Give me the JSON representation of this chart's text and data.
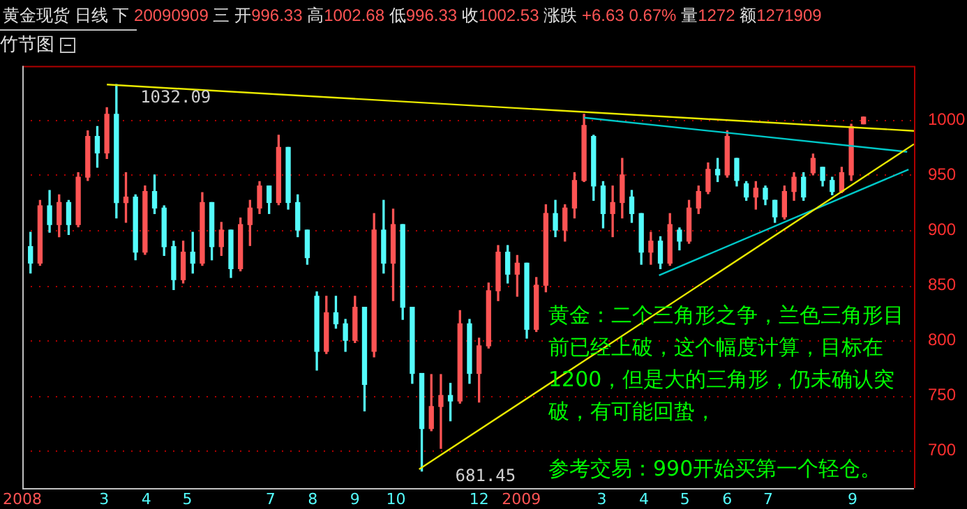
{
  "chart_data": {
    "type": "candlestick",
    "title": "黄金现货 日线 下 20090909 三 开996.33 高1002.68 低996.33 收1002.53 涨跌 +6.63 0.67% 量1272 额1271909",
    "subtitle": "竹节图",
    "x": [
      "2008-01-07",
      "2008-01-14",
      "2008-01-21",
      "2008-01-28",
      "2008-02-04",
      "2008-02-11",
      "2008-02-18",
      "2008-02-25",
      "2008-03-03",
      "2008-03-10",
      "2008-03-17",
      "2008-03-24",
      "2008-03-31",
      "2008-04-07",
      "2008-04-14",
      "2008-04-21",
      "2008-04-28",
      "2008-05-05",
      "2008-05-12",
      "2008-05-19",
      "2008-05-26",
      "2008-06-02",
      "2008-06-09",
      "2008-06-16",
      "2008-06-23",
      "2008-06-30",
      "2008-07-07",
      "2008-07-14",
      "2008-07-21",
      "2008-07-28",
      "2008-08-04",
      "2008-08-11",
      "2008-08-18",
      "2008-08-25",
      "2008-09-01",
      "2008-09-08",
      "2008-09-15",
      "2008-09-22",
      "2008-09-29",
      "2008-10-06",
      "2008-10-13",
      "2008-10-20",
      "2008-10-27",
      "2008-11-03",
      "2008-11-10",
      "2008-11-17",
      "2008-11-24",
      "2008-12-01",
      "2008-12-08",
      "2008-12-15",
      "2008-12-22",
      "2008-12-29",
      "2009-01-05",
      "2009-01-12",
      "2009-01-19",
      "2009-01-26",
      "2009-02-02",
      "2009-02-09",
      "2009-02-16",
      "2009-02-23",
      "2009-03-02",
      "2009-03-09",
      "2009-03-16",
      "2009-03-23",
      "2009-03-30",
      "2009-04-06",
      "2009-04-13",
      "2009-04-20",
      "2009-04-27",
      "2009-05-04",
      "2009-05-11",
      "2009-05-18",
      "2009-05-25",
      "2009-06-01",
      "2009-06-08",
      "2009-06-15",
      "2009-06-22",
      "2009-06-29",
      "2009-07-06",
      "2009-07-13",
      "2009-07-20",
      "2009-07-27",
      "2009-08-03",
      "2009-08-10",
      "2009-08-17",
      "2009-08-24",
      "2009-08-31",
      "2009-09-09"
    ],
    "ohlc": [
      [
        885,
        898,
        861,
        870
      ],
      [
        870,
        927,
        868,
        922
      ],
      [
        922,
        936,
        898,
        905
      ],
      [
        905,
        932,
        894,
        925
      ],
      [
        925,
        927,
        896,
        905
      ],
      [
        905,
        952,
        903,
        948
      ],
      [
        948,
        990,
        945,
        985
      ],
      [
        985,
        994,
        957,
        970
      ],
      [
        970,
        1011,
        965,
        1005
      ],
      [
        1005,
        1032.09,
        911,
        925
      ],
      [
        925,
        952,
        907,
        930
      ],
      [
        930,
        932,
        873,
        880
      ],
      [
        880,
        940,
        878,
        935
      ],
      [
        935,
        950,
        915,
        920
      ],
      [
        920,
        922,
        877,
        885
      ],
      [
        885,
        890,
        846,
        855
      ],
      [
        855,
        890,
        852,
        880
      ],
      [
        880,
        898,
        861,
        870
      ],
      [
        870,
        934,
        868,
        925
      ],
      [
        925,
        925,
        873,
        885
      ],
      [
        885,
        907,
        877,
        900
      ],
      [
        900,
        900,
        857,
        865
      ],
      [
        865,
        911,
        863,
        905
      ],
      [
        905,
        927,
        886,
        920
      ],
      [
        920,
        944,
        915,
        940
      ],
      [
        940,
        940,
        915,
        925
      ],
      [
        925,
        986,
        923,
        975
      ],
      [
        975,
        975,
        919,
        925
      ],
      [
        925,
        932,
        894,
        900
      ],
      [
        900,
        900,
        869,
        875
      ],
      [
        840,
        844,
        773,
        790
      ],
      [
        790,
        840,
        788,
        825
      ],
      [
        825,
        840,
        811,
        815
      ],
      [
        815,
        819,
        790,
        800
      ],
      [
        800,
        840,
        798,
        830
      ],
      [
        830,
        830,
        736,
        760
      ],
      [
        790,
        915,
        785,
        900
      ],
      [
        900,
        927,
        861,
        870
      ],
      [
        870,
        919,
        836,
        905
      ],
      [
        905,
        905,
        819,
        830
      ],
      [
        830,
        830,
        761,
        770
      ],
      [
        770,
        770,
        681.45,
        720
      ],
      [
        720,
        769,
        718,
        740
      ],
      [
        740,
        769,
        702,
        750
      ],
      [
        750,
        761,
        727,
        745
      ],
      [
        745,
        827,
        743,
        815
      ],
      [
        815,
        819,
        761,
        770
      ],
      [
        770,
        802,
        744,
        795
      ],
      [
        795,
        852,
        793,
        845
      ],
      [
        845,
        886,
        836,
        880
      ],
      [
        880,
        886,
        852,
        860
      ],
      [
        860,
        877,
        840,
        870
      ],
      [
        870,
        870,
        802,
        810
      ],
      [
        810,
        857,
        808,
        850
      ],
      [
        850,
        923,
        844,
        915
      ],
      [
        915,
        927,
        894,
        900
      ],
      [
        900,
        923,
        890,
        920
      ],
      [
        920,
        952,
        911,
        945
      ],
      [
        945,
        1005,
        944,
        995
      ],
      [
        985,
        986,
        927,
        940
      ],
      [
        940,
        944,
        902,
        915
      ],
      [
        915,
        940,
        894,
        925
      ],
      [
        925,
        965,
        911,
        950
      ],
      [
        930,
        936,
        907,
        915
      ],
      [
        915,
        915,
        869,
        880
      ],
      [
        880,
        898,
        869,
        890
      ],
      [
        890,
        894,
        865,
        870
      ],
      [
        870,
        915,
        868,
        905
      ],
      [
        900,
        902,
        882,
        890
      ],
      [
        890,
        927,
        888,
        920
      ],
      [
        920,
        940,
        915,
        935
      ],
      [
        935,
        961,
        933,
        955
      ],
      [
        955,
        965,
        944,
        950
      ],
      [
        950,
        990,
        948,
        985
      ],
      [
        965,
        965,
        940,
        945
      ],
      [
        942,
        944,
        927,
        930
      ],
      [
        930,
        944,
        919,
        938
      ],
      [
        938,
        940,
        923,
        928
      ],
      [
        927,
        927,
        907,
        912
      ],
      [
        912,
        940,
        910,
        935
      ],
      [
        935,
        952,
        927,
        948
      ],
      [
        948,
        952,
        927,
        930
      ],
      [
        952,
        969,
        950,
        965
      ],
      [
        957,
        957,
        940,
        945
      ],
      [
        945,
        948,
        932,
        935
      ],
      [
        935,
        957,
        934,
        952
      ],
      [
        950,
        996,
        945,
        994
      ],
      [
        996.33,
        1002.68,
        996.33,
        1002.53
      ]
    ],
    "colors": [
      "#54fcfc",
      "#ff5454",
      "#54fcfc",
      "#ff5454",
      "#54fcfc",
      "#ff5454",
      "#ff5454",
      "#54fcfc",
      "#ff5454",
      "#54fcfc",
      "#ff5454",
      "#54fcfc",
      "#ff5454",
      "#54fcfc",
      "#54fcfc",
      "#54fcfc",
      "#ff5454",
      "#54fcfc",
      "#ff5454",
      "#54fcfc",
      "#ff5454",
      "#54fcfc",
      "#ff5454",
      "#ff5454",
      "#ff5454",
      "#54fcfc",
      "#ff5454",
      "#54fcfc",
      "#54fcfc",
      "#54fcfc",
      "#54fcfc",
      "#ff5454",
      "#54fcfc",
      "#54fcfc",
      "#ff5454",
      "#54fcfc",
      "#ff5454",
      "#54fcfc",
      "#ff5454",
      "#54fcfc",
      "#54fcfc",
      "#54fcfc",
      "#ff5454",
      "#ff5454",
      "#54fcfc",
      "#ff5454",
      "#54fcfc",
      "#ff5454",
      "#ff5454",
      "#ff5454",
      "#54fcfc",
      "#ff5454",
      "#54fcfc",
      "#ff5454",
      "#ff5454",
      "#54fcfc",
      "#ff5454",
      "#ff5454",
      "#ff5454",
      "#54fcfc",
      "#54fcfc",
      "#ff5454",
      "#ff5454",
      "#54fcfc",
      "#54fcfc",
      "#ff5454",
      "#54fcfc",
      "#ff5454",
      "#54fcfc",
      "#ff5454",
      "#ff5454",
      "#ff5454",
      "#54fcfc",
      "#ff5454",
      "#54fcfc",
      "#54fcfc",
      "#ff5454",
      "#54fcfc",
      "#54fcfc",
      "#ff5454",
      "#ff5454",
      "#54fcfc",
      "#ff5454",
      "#54fcfc",
      "#54fcfc",
      "#ff5454",
      "#ff5454",
      "#ff5454"
    ],
    "series": [
      {
        "type": "line",
        "color": "#e8e800",
        "x": [
          "2008-03-03",
          "2009-10-16"
        ],
        "values": [
          1032,
          990
        ]
      },
      {
        "type": "line",
        "color": "#e8e800",
        "x": [
          "2008-10-18",
          "2009-10-16"
        ],
        "values": [
          683,
          978
        ]
      },
      {
        "type": "line",
        "color": "#00c8c8",
        "x": [
          "2009-02-16",
          "2009-10-11"
        ],
        "values": [
          1002,
          971
        ]
      },
      {
        "type": "line",
        "color": "#00c8c8",
        "x": [
          "2009-04-12",
          "2009-10-12"
        ],
        "values": [
          859,
          955
        ]
      }
    ],
    "xlim": [
      "2008-01-01",
      "2009-10-16"
    ],
    "xticks": [
      {
        "value": "2008-01",
        "label": "2008"
      },
      {
        "value": "2008-03",
        "label": "3"
      },
      {
        "value": "2008-04",
        "label": "4"
      },
      {
        "value": "2008-05",
        "label": "5"
      },
      {
        "value": "2008-07",
        "label": "7"
      },
      {
        "value": "2008-08",
        "label": "8"
      },
      {
        "value": "2008-09",
        "label": "9"
      },
      {
        "value": "2008-10",
        "label": "10"
      },
      {
        "value": "2008-12",
        "label": "12"
      },
      {
        "value": "2009-01",
        "label": "2009"
      },
      {
        "value": "2009-03",
        "label": "3"
      },
      {
        "value": "2009-04",
        "label": "4"
      },
      {
        "value": "2009-05",
        "label": "5"
      },
      {
        "value": "2009-06",
        "label": "6"
      },
      {
        "value": "2009-07",
        "label": "7"
      },
      {
        "value": "2009-09",
        "label": "9"
      }
    ],
    "ylim": [
      666,
      1049
    ],
    "yticks": [
      700,
      750,
      800,
      850,
      900,
      950,
      1000
    ],
    "grid": "y",
    "legend": false,
    "annotations": [
      {
        "text": "1032.09",
        "x": "2008-03-03",
        "y": 1032.09
      },
      {
        "text": "681.45",
        "x": "2008-10-20",
        "y": 681.45
      },
      "黄金：二个三角形之争，兰色三角形目前已经上破，这个幅度计算，目标在1200，但是大的三角形，仍未确认突破，有可能回蛰，",
      "参考交易：990开始买第一个轻仓。"
    ]
  }
}
